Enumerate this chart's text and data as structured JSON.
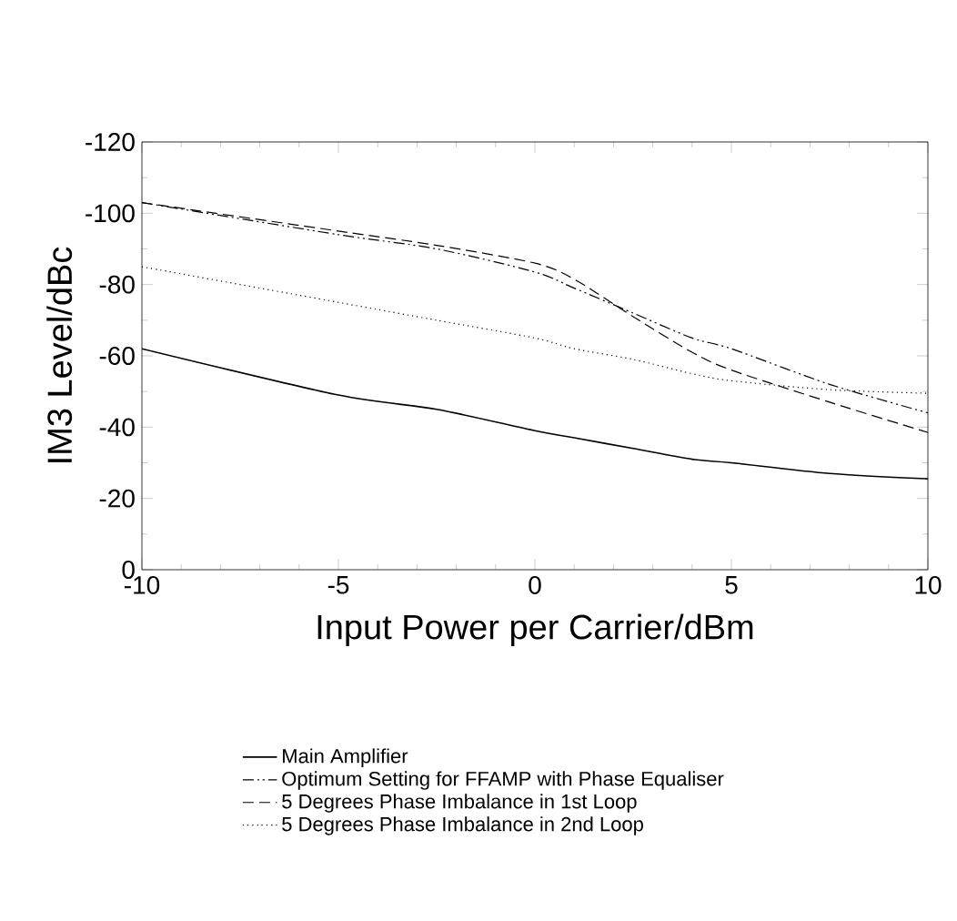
{
  "chart_data": {
    "type": "line",
    "xlabel": "Input Power per Carrier/dBm",
    "ylabel": "IM3 Level/dBc",
    "x": [
      -10,
      -5,
      -2.5,
      0,
      1,
      2.5,
      4,
      5,
      7.5,
      10
    ],
    "xlim": [
      -10,
      10
    ],
    "xticks": [
      -10,
      -5,
      0,
      5,
      10
    ],
    "ylim": [
      0,
      -120
    ],
    "yticks": [
      -120,
      -100,
      -80,
      -60,
      -40,
      -20,
      0
    ],
    "grid": false,
    "legend": "bottom",
    "marker": "none",
    "series": [
      {
        "name": "Main Amplifier",
        "color": "#000000",
        "line_style": "solid",
        "values": [
          -62,
          -49,
          -45,
          -39,
          -37,
          -34,
          -31,
          -30,
          -27,
          -25.5
        ]
      },
      {
        "name": "Optimum Setting for FFAMP with Phase Equaliser",
        "color": "#000000",
        "line_style": "dashdotdot",
        "values": [
          -103,
          -94,
          -90,
          -83.5,
          -79,
          -72,
          -65,
          -62,
          -52,
          -44
        ]
      },
      {
        "name": "5 Degrees Phase Imbalance in 1st Loop",
        "color": "#000000",
        "line_style": "dashed",
        "values": [
          -103,
          -95,
          -91,
          -86,
          -81.5,
          -71,
          -61,
          -56,
          -47,
          -38.5
        ]
      },
      {
        "name": "5 Degrees Phase Imbalance in 2nd Loop",
        "color": "#000000",
        "line_style": "dotted",
        "values": [
          -85,
          -75,
          -70,
          -65,
          -62,
          -59,
          -55,
          -53,
          -50.5,
          -49.5
        ]
      }
    ]
  }
}
